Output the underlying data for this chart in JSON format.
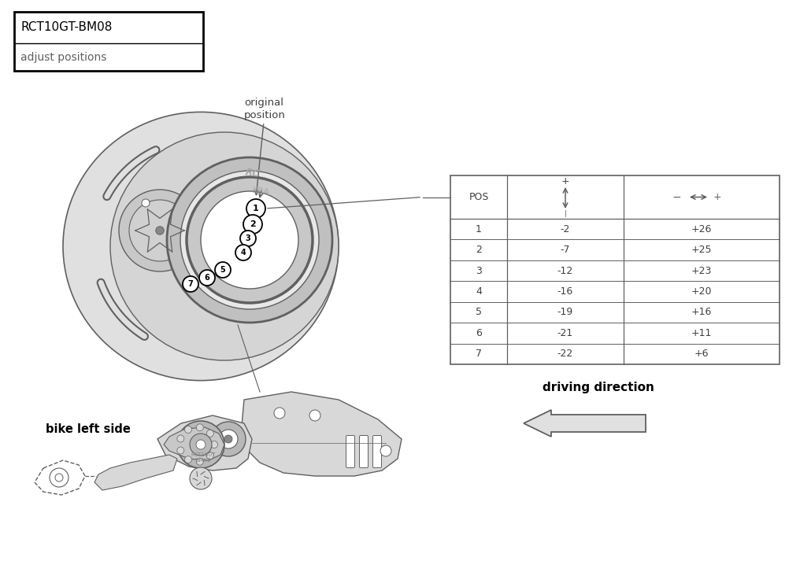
{
  "title_line1": "RCT10GT-BM08",
  "title_line2": "adjust positions",
  "table_data": [
    [
      "1",
      "-2",
      "+26"
    ],
    [
      "2",
      "-7",
      "+25"
    ],
    [
      "3",
      "-12",
      "+23"
    ],
    [
      "4",
      "-16",
      "+20"
    ],
    [
      "5",
      "-19",
      "+16"
    ],
    [
      "6",
      "-21",
      "+11"
    ],
    [
      "7",
      "-22",
      "+6"
    ]
  ],
  "label_original_position": "original\nposition",
  "label_bike_left": "bike left side",
  "label_driving": "driving direction",
  "bg_color": "#ffffff",
  "line_color": "#606060",
  "text_color": "#404040",
  "light_gray": "#d8d8d8",
  "mid_gray": "#b8b8b8",
  "dark_gray": "#888888"
}
